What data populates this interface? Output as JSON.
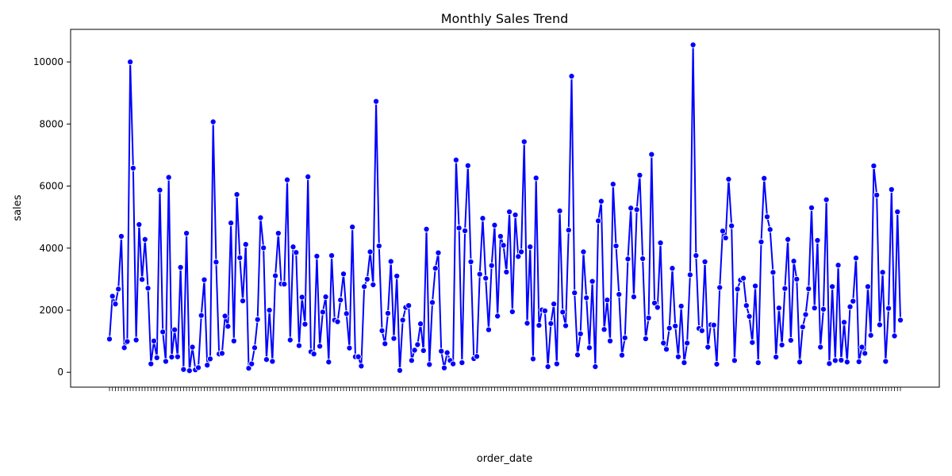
{
  "chart_data": {
    "type": "line",
    "title": "Monthly Sales Trend",
    "xlabel": "order_date",
    "ylabel": "sales",
    "ylim": [
      -480,
      11050
    ],
    "y_ticks": [
      0,
      2000,
      4000,
      6000,
      8000,
      10000
    ],
    "grid": false,
    "legend": "none",
    "line_color": "#0000ff",
    "marker_face": "#0000ff",
    "marker_edge": "#ffffff",
    "values": [
      1070,
      2450,
      2200,
      2680,
      4380,
      790,
      990,
      10000,
      6580,
      1040,
      4760,
      2990,
      4280,
      2710,
      270,
      1010,
      470,
      5870,
      1300,
      350,
      6280,
      490,
      1370,
      500,
      3380,
      90,
      4480,
      50,
      810,
      80,
      150,
      1830,
      2980,
      230,
      430,
      8070,
      3550,
      590,
      610,
      1810,
      1480,
      4810,
      1010,
      5730,
      3690,
      2300,
      4120,
      130,
      270,
      790,
      1700,
      4980,
      4010,
      410,
      2000,
      350,
      3110,
      4480,
      2850,
      2840,
      6200,
      1040,
      4040,
      3860,
      860,
      2420,
      1550,
      6300,
      660,
      590,
      3740,
      840,
      1940,
      2430,
      330,
      3760,
      1680,
      1630,
      2330,
      3170,
      1890,
      780,
      4680,
      500,
      500,
      200,
      2760,
      3000,
      3880,
      2820,
      8730,
      4070,
      1340,
      920,
      1900,
      3570,
      1090,
      3100,
      60,
      1680,
      2090,
      2150,
      380,
      710,
      890,
      1560,
      700,
      4610,
      250,
      2250,
      3350,
      3850,
      680,
      140,
      630,
      380,
      270,
      6840,
      4650,
      310,
      4560,
      6660,
      3560,
      440,
      510,
      3160,
      4960,
      3030,
      1370,
      3440,
      4740,
      1810,
      4380,
      4090,
      3230,
      5170,
      1950,
      5070,
      3730,
      3880,
      7430,
      1580,
      4040,
      430,
      6260,
      1510,
      2010,
      1980,
      180,
      1570,
      2200,
      270,
      5200,
      1940,
      1500,
      4580,
      9540,
      2560,
      560,
      1240,
      3880,
      2400,
      790,
      2930,
      180,
      4880,
      5510,
      1380,
      2330,
      1010,
      6060,
      4070,
      2510,
      550,
      1110,
      3650,
      5290,
      2430,
      5240,
      6350,
      3660,
      1080,
      1750,
      7020,
      2230,
      2090,
      4170,
      940,
      740,
      1420,
      3350,
      1490,
      500,
      2130,
      310,
      940,
      3140,
      10550,
      3760,
      1410,
      1340,
      3560,
      810,
      1530,
      1520,
      260,
      2730,
      4550,
      4330,
      6220,
      4720,
      380,
      2680,
      2970,
      3030,
      2150,
      1800,
      960,
      2780,
      310,
      4200,
      6250,
      5010,
      4600,
      3220,
      490,
      2070,
      880,
      2700,
      4280,
      1030,
      3580,
      3000,
      330,
      1460,
      1860,
      2690,
      5300,
      2070,
      4250,
      810,
      2030,
      5560,
      280,
      2760,
      380,
      3450,
      390,
      1610,
      330,
      2110,
      2290,
      3680,
      340,
      810,
      610,
      2760,
      1190,
      6650,
      5710,
      1530,
      3220,
      350,
      2060,
      5890,
      1170,
      5170,
      1680
    ]
  }
}
